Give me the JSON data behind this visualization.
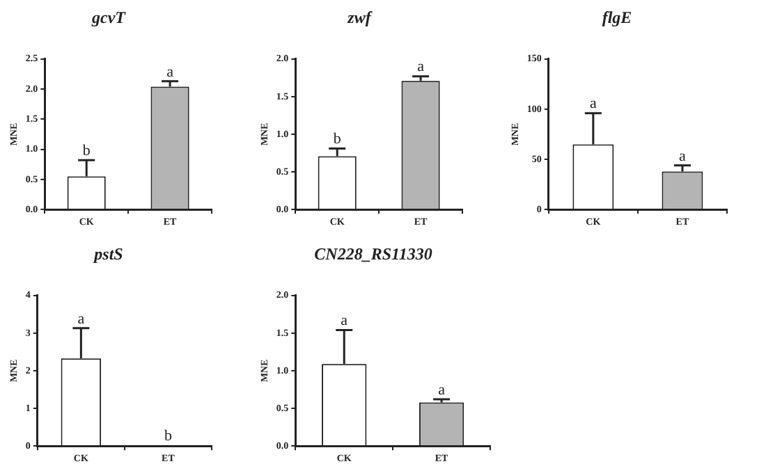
{
  "chart_data": [
    {
      "type": "bar",
      "title": "gcvT",
      "ylabel": "MNE",
      "categories": [
        "CK",
        "ET"
      ],
      "values": [
        0.55,
        2.04
      ],
      "colors": [
        "#ffffff",
        "#b4b4b4"
      ],
      "errors": [
        [
          0.55,
          0.82
        ],
        [
          2.04,
          2.13
        ]
      ],
      "ylim": [
        0,
        2.5
      ],
      "yticks": [
        {
          "value": 0,
          "label": "0.0"
        },
        {
          "value": 0.5,
          "label": "0.5"
        },
        {
          "value": 1,
          "label": "1.0"
        },
        {
          "value": 1.5,
          "label": "1.5"
        },
        {
          "value": 2,
          "label": "2.0"
        },
        {
          "value": 2.5,
          "label": "2.5"
        }
      ],
      "grid": false,
      "legend": false,
      "annotations": [
        {
          "text": "b",
          "x": "CK",
          "y": 0.82
        },
        {
          "text": "a",
          "x": "ET",
          "y": 2.13
        }
      ]
    },
    {
      "type": "bar",
      "title": "zwf",
      "ylabel": "MNE",
      "categories": [
        "CK",
        "ET"
      ],
      "values": [
        0.71,
        1.71
      ],
      "colors": [
        "#ffffff",
        "#b4b4b4"
      ],
      "errors": [
        [
          0.71,
          0.81
        ],
        [
          1.71,
          1.77
        ]
      ],
      "ylim": [
        0,
        2
      ],
      "yticks": [
        {
          "value": 0,
          "label": "0.0"
        },
        {
          "value": 0.5,
          "label": "0.5"
        },
        {
          "value": 1,
          "label": "1.0"
        },
        {
          "value": 1.5,
          "label": "1.5"
        },
        {
          "value": 2,
          "label": "2.0"
        }
      ],
      "grid": false,
      "legend": false,
      "annotations": [
        {
          "text": "b",
          "x": "CK",
          "y": 0.81
        },
        {
          "text": "a",
          "x": "ET",
          "y": 1.77
        }
      ]
    },
    {
      "type": "bar",
      "title": "flgE",
      "ylabel": "MNE",
      "categories": [
        "CK",
        "ET"
      ],
      "values": [
        65,
        38
      ],
      "colors": [
        "#ffffff",
        "#b4b4b4"
      ],
      "errors": [
        [
          65,
          96
        ],
        [
          38,
          44
        ]
      ],
      "ylim": [
        0,
        150
      ],
      "yticks": [
        0,
        50,
        100,
        150
      ],
      "grid": false,
      "legend": false,
      "annotations": [
        {
          "text": "a",
          "x": "CK",
          "y": 96
        },
        {
          "text": "a",
          "x": "ET",
          "y": 44
        }
      ]
    },
    {
      "type": "bar",
      "title": "pstS",
      "ylabel": "MNE",
      "categories": [
        "CK",
        "ET"
      ],
      "values": [
        2.33,
        0.02
      ],
      "colors": [
        "#ffffff",
        "#b4b4b4"
      ],
      "errors": [
        [
          2.33,
          3.13
        ],
        null
      ],
      "ylim": [
        0,
        4
      ],
      "yticks": [
        0,
        1,
        2,
        3,
        4
      ],
      "grid": false,
      "legend": false,
      "annotations": [
        {
          "text": "a",
          "x": "CK",
          "y": 3.13
        },
        {
          "text": "b",
          "x": "ET",
          "y": 0.02
        }
      ]
    },
    {
      "type": "bar",
      "title": "CN228_RS11330",
      "ylabel": "MNE",
      "categories": [
        "CK",
        "ET"
      ],
      "values": [
        1.09,
        0.58
      ],
      "colors": [
        "#ffffff",
        "#b4b4b4"
      ],
      "errors": [
        [
          1.09,
          1.54
        ],
        [
          0.58,
          0.62
        ]
      ],
      "ylim": [
        0,
        2
      ],
      "yticks": [
        {
          "value": 0,
          "label": "0.0"
        },
        {
          "value": 0.5,
          "label": "0.5"
        },
        {
          "value": 1,
          "label": "1.0"
        },
        {
          "value": 1.5,
          "label": "1.5"
        },
        {
          "value": 2,
          "label": "2.0"
        }
      ],
      "grid": false,
      "legend": false,
      "annotations": [
        {
          "text": "a",
          "x": "CK",
          "y": 1.54
        },
        {
          "text": "a",
          "x": "ET",
          "y": 0.62
        }
      ]
    }
  ]
}
